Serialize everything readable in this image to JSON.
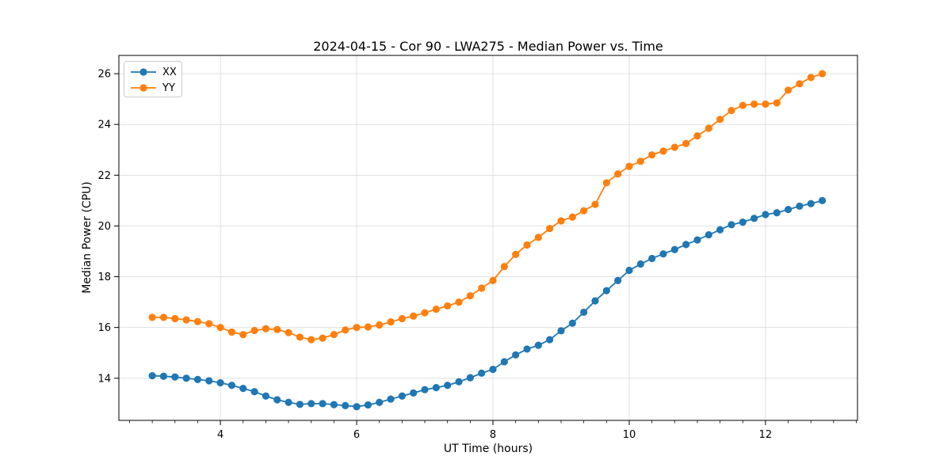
{
  "figure": {
    "title": "2024-04-15 - Cor 90 - LWA275 - Median Power vs. Time",
    "xlabel": "UT Time (hours)",
    "ylabel": "Median Power (CPU)"
  },
  "colors": {
    "series_xx": "#1f77b4",
    "series_yy": "#ff7f0e",
    "grid": "#e0e0e0",
    "spine": "#000000",
    "tick": "#000000",
    "legend_border": "#cccccc"
  },
  "chart_data": {
    "type": "line",
    "title": "2024-04-15 - Cor 90 - LWA275 - Median Power vs. Time",
    "xlabel": "UT Time (hours)",
    "ylabel": "Median Power (CPU)",
    "grid": true,
    "legend_position": "upper left",
    "marker": "circle",
    "xlim": [
      2.51,
      13.35
    ],
    "ylim": [
      12.34,
      26.72
    ],
    "xticks": [
      4,
      6,
      8,
      10,
      12
    ],
    "yticks": [
      14,
      16,
      18,
      20,
      22,
      24,
      26
    ],
    "x_minor_step": 0.333333,
    "x": [
      3.0,
      3.1667,
      3.3333,
      3.5,
      3.6667,
      3.8333,
      4.0,
      4.1667,
      4.3333,
      4.5,
      4.6667,
      4.8333,
      5.0,
      5.1667,
      5.3333,
      5.5,
      5.6667,
      5.8333,
      6.0,
      6.1667,
      6.3333,
      6.5,
      6.6667,
      6.8333,
      7.0,
      7.1667,
      7.3333,
      7.5,
      7.6667,
      7.8333,
      8.0,
      8.1667,
      8.3333,
      8.5,
      8.6667,
      8.8333,
      9.0,
      9.1667,
      9.3333,
      9.5,
      9.6667,
      9.8333,
      10.0,
      10.1667,
      10.3333,
      10.5,
      10.6667,
      10.8333,
      11.0,
      11.1667,
      11.3333,
      11.5,
      11.6667,
      11.8333,
      12.0,
      12.1667,
      12.3333,
      12.5,
      12.6667,
      12.8333
    ],
    "series": [
      {
        "name": "XX",
        "color": "#1f77b4",
        "values": [
          14.1,
          14.08,
          14.05,
          14.0,
          13.95,
          13.9,
          13.82,
          13.72,
          13.6,
          13.47,
          13.3,
          13.15,
          13.05,
          12.97,
          13.0,
          13.0,
          12.96,
          12.92,
          12.88,
          12.95,
          13.05,
          13.18,
          13.3,
          13.42,
          13.55,
          13.63,
          13.72,
          13.86,
          14.02,
          14.2,
          14.35,
          14.65,
          14.92,
          15.15,
          15.3,
          15.52,
          15.87,
          16.17,
          16.6,
          17.05,
          17.45,
          17.85,
          18.25,
          18.5,
          18.72,
          18.9,
          19.07,
          19.27,
          19.45,
          19.65,
          19.85,
          20.05,
          20.15,
          20.3,
          20.45,
          20.52,
          20.65,
          20.78,
          20.88,
          21.0
        ]
      },
      {
        "name": "YY",
        "color": "#ff7f0e",
        "values": [
          16.4,
          16.4,
          16.35,
          16.3,
          16.23,
          16.15,
          16.0,
          15.82,
          15.72,
          15.88,
          15.95,
          15.92,
          15.8,
          15.62,
          15.52,
          15.58,
          15.72,
          15.9,
          16.0,
          16.02,
          16.1,
          16.22,
          16.35,
          16.45,
          16.58,
          16.72,
          16.85,
          17.0,
          17.25,
          17.55,
          17.85,
          18.4,
          18.88,
          19.25,
          19.55,
          19.9,
          20.2,
          20.35,
          20.6,
          20.85,
          21.7,
          22.05,
          22.35,
          22.55,
          22.8,
          22.95,
          23.1,
          23.25,
          23.55,
          23.85,
          24.2,
          24.55,
          24.75,
          24.8,
          24.8,
          24.85,
          25.35,
          25.6,
          25.85,
          26.0
        ]
      }
    ]
  }
}
